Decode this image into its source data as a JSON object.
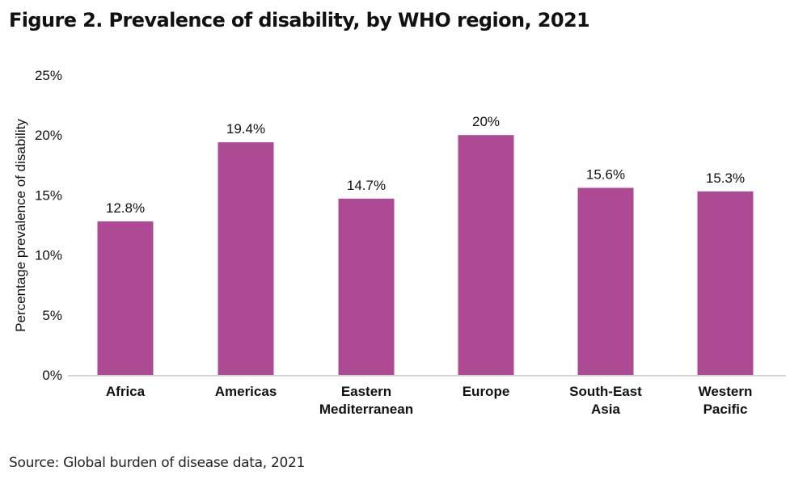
{
  "figure": {
    "title": "Figure 2. Prevalence of disability, by WHO region, 2021",
    "source": "Source: Global burden of disease data, 2021"
  },
  "chart_data": {
    "type": "bar",
    "title": "Figure 2. Prevalence of disability, by WHO region, 2021",
    "xlabel": "",
    "ylabel": "Percentage prevalence of disability",
    "categories": [
      [
        "Africa"
      ],
      [
        "Americas"
      ],
      [
        "Eastern",
        "Mediterranean"
      ],
      [
        "Europe"
      ],
      [
        "South-East",
        "Asia"
      ],
      [
        "Western",
        "Pacific"
      ]
    ],
    "values": [
      12.8,
      19.4,
      14.7,
      20,
      15.6,
      15.3
    ],
    "data_labels": [
      "12.8%",
      "19.4%",
      "14.7%",
      "20%",
      "15.6%",
      "15.3%"
    ],
    "ylim": [
      0,
      25
    ],
    "yticks": [
      0,
      5,
      10,
      15,
      20,
      25
    ],
    "ytick_labels": [
      "0%",
      "5%",
      "10%",
      "15%",
      "20%",
      "25%"
    ],
    "grid": false,
    "legend": "none",
    "colors": {
      "bar": "#AE4A93",
      "baseline": "#D4D4D4",
      "text": "#111111"
    }
  }
}
